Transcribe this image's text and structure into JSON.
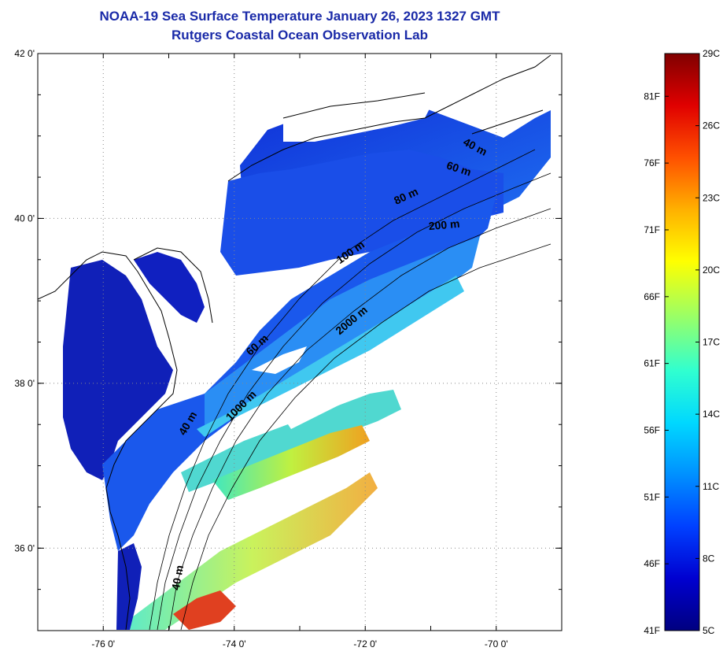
{
  "header": {
    "title": "NOAA-19 Sea Surface Temperature January 26, 2023 1327 GMT",
    "subtitle": "Rutgers Coastal Ocean Observation Lab"
  },
  "map": {
    "lon_range": [
      -77,
      -69
    ],
    "lat_range": [
      35,
      42
    ],
    "lat_ticks": [
      {
        "value": 42,
        "label": "42 0'"
      },
      {
        "value": 40,
        "label": "40 0'"
      },
      {
        "value": 38,
        "label": "38 0'"
      },
      {
        "value": 36,
        "label": "36 0'"
      }
    ],
    "lon_ticks": [
      {
        "value": -76,
        "label": "-76 0'"
      },
      {
        "value": -74,
        "label": "-74 0'"
      },
      {
        "value": -72,
        "label": "-72 0'"
      },
      {
        "value": -70,
        "label": "-70 0'"
      }
    ],
    "depth_labels": [
      "40 m",
      "60 m",
      "80 m",
      "200 m",
      "100 m",
      "2000 m",
      "60 m",
      "1000 m",
      "40 m",
      "40 m"
    ]
  },
  "colorbar": {
    "fahrenheit_labels": [
      "81F",
      "76F",
      "71F",
      "66F",
      "61F",
      "56F",
      "51F",
      "46F",
      "41F"
    ],
    "celsius_labels": [
      "29C",
      "26C",
      "23C",
      "20C",
      "17C",
      "14C",
      "11C",
      "8C",
      "5C"
    ],
    "colors": [
      "#000080",
      "#0000d0",
      "#0040ff",
      "#0090ff",
      "#00e0ff",
      "#40ffc0",
      "#a0ff60",
      "#ffff00",
      "#ffb000",
      "#ff5000",
      "#e00000",
      "#800000"
    ]
  }
}
